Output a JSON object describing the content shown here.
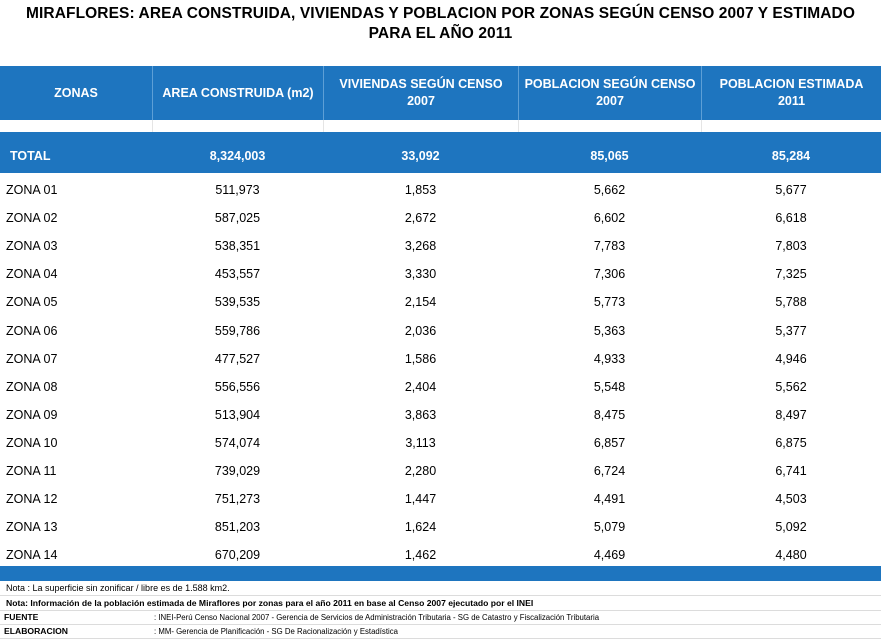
{
  "title": {
    "line1": "MIRAFLORES: AREA CONSTRUIDA, VIVIENDAS Y POBLACION POR ZONAS SEGÚN CENSO 2007 Y ESTIMADO",
    "line2": "PARA EL AÑO 2011"
  },
  "headers": {
    "zonas": "ZONAS",
    "area": "AREA CONSTRUIDA (m2)",
    "viviendas": "VIVIENDAS SEGÚN CENSO 2007",
    "poblacion2007": "POBLACION SEGÚN CENSO 2007",
    "poblacion2011": "POBLACION ESTIMADA 2011"
  },
  "total": {
    "label": "TOTAL",
    "area": "8,324,003",
    "viviendas": "33,092",
    "poblacion2007": "85,065",
    "poblacion2011": "85,284"
  },
  "rows": [
    {
      "zona": "ZONA  01",
      "area": "511,973",
      "viviendas": "1,853",
      "poblacion2007": "5,662",
      "poblacion2011": "5,677"
    },
    {
      "zona": "ZONA  02",
      "area": "587,025",
      "viviendas": "2,672",
      "poblacion2007": "6,602",
      "poblacion2011": "6,618"
    },
    {
      "zona": "ZONA  03",
      "area": "538,351",
      "viviendas": "3,268",
      "poblacion2007": "7,783",
      "poblacion2011": "7,803"
    },
    {
      "zona": "ZONA  04",
      "area": "453,557",
      "viviendas": "3,330",
      "poblacion2007": "7,306",
      "poblacion2011": "7,325"
    },
    {
      "zona": "ZONA  05",
      "area": "539,535",
      "viviendas": "2,154",
      "poblacion2007": "5,773",
      "poblacion2011": "5,788"
    },
    {
      "zona": "ZONA  06",
      "area": "559,786",
      "viviendas": "2,036",
      "poblacion2007": "5,363",
      "poblacion2011": "5,377"
    },
    {
      "zona": "ZONA  07",
      "area": "477,527",
      "viviendas": "1,586",
      "poblacion2007": "4,933",
      "poblacion2011": "4,946"
    },
    {
      "zona": "ZONA  08",
      "area": "556,556",
      "viviendas": "2,404",
      "poblacion2007": "5,548",
      "poblacion2011": "5,562"
    },
    {
      "zona": "ZONA  09",
      "area": "513,904",
      "viviendas": "3,863",
      "poblacion2007": "8,475",
      "poblacion2011": "8,497"
    },
    {
      "zona": "ZONA  10",
      "area": "574,074",
      "viviendas": "3,113",
      "poblacion2007": "6,857",
      "poblacion2011": "6,875"
    },
    {
      "zona": "ZONA  11",
      "area": "739,029",
      "viviendas": "2,280",
      "poblacion2007": "6,724",
      "poblacion2011": "6,741"
    },
    {
      "zona": "ZONA  12",
      "area": "751,273",
      "viviendas": "1,447",
      "poblacion2007": "4,491",
      "poblacion2011": "4,503"
    },
    {
      "zona": "ZONA  13",
      "area": "851,203",
      "viviendas": "1,624",
      "poblacion2007": "5,079",
      "poblacion2011": "5,092"
    },
    {
      "zona": "ZONA  14",
      "area": "670,209",
      "viviendas": "1,462",
      "poblacion2007": "4,469",
      "poblacion2011": "4,480"
    }
  ],
  "notes": {
    "superficie": "Nota : La superficie sin zonificar / libre es de 1.588 km2.",
    "informacion": "Nota: Información de la población estimada de Miraflores por zonas  para el año 2011 en base al Censo  2007 ejecutado por el INEI",
    "fuente_label": "FUENTE",
    "fuente_text": ": INEI-Perú Censo Nacional 2007  - Gerencia de Servicios de Administración Tributaria  -  SG de Catastro y Fiscalización Tributaria",
    "elaboracion_label": "ELABORACION",
    "elaboracion_text": ": MM- Gerencia de Planificación - SG De Racionalización y Estadística"
  },
  "colors": {
    "header_blue": "#1e75bf",
    "header_text": "#ffffff"
  }
}
